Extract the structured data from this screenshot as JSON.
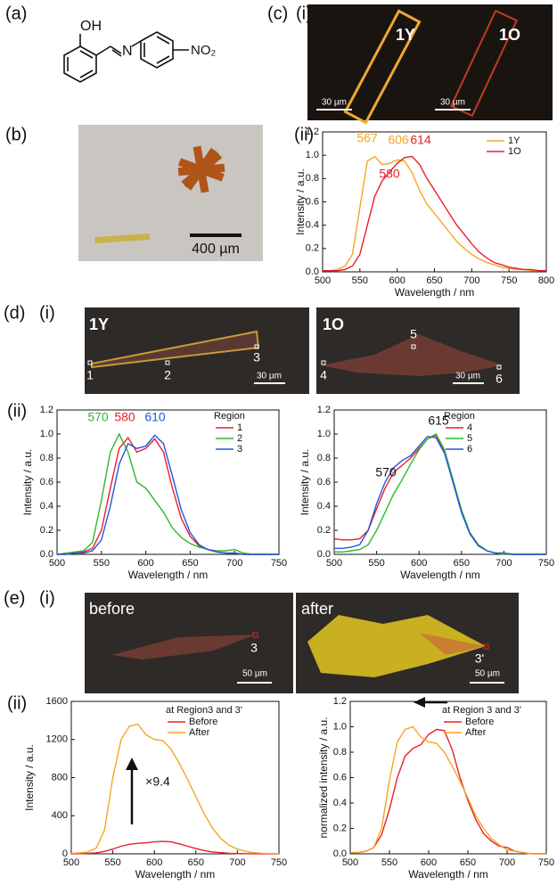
{
  "labels": {
    "a": "(a)",
    "b": "(b)",
    "c": "(c)",
    "c_i": "(i)",
    "c_ii": "(ii)",
    "d": "(d)",
    "d_i": "(i)",
    "d_ii": "(ii)",
    "e": "(e)",
    "e_i": "(i)",
    "e_ii": "(ii)"
  },
  "molecule": {
    "oh": "OH",
    "n": "N",
    "no2": "NO₂"
  },
  "photo_b": {
    "scale": "400 µm"
  },
  "image_c": {
    "left": "1Y",
    "right": "1O",
    "scale_left": "30 µm",
    "scale_right": "30 µm"
  },
  "image_d": {
    "left": "1Y",
    "right": "1O",
    "points": [
      "1",
      "2",
      "3",
      "4",
      "5",
      "6"
    ],
    "scale_left": "30 µm",
    "scale_right": "30 µm"
  },
  "image_e": {
    "left": "before",
    "right": "after",
    "point_left": "3",
    "point_right": "3'",
    "scale_left": "50 µm",
    "scale_right": "50 µm"
  },
  "chart_data": [
    {
      "type": "line",
      "x_label": "Wavelength / nm",
      "y_label": "Intensity / a.u.",
      "x": [
        500,
        510,
        520,
        530,
        540,
        550,
        560,
        570,
        580,
        590,
        600,
        610,
        620,
        630,
        640,
        650,
        660,
        670,
        680,
        690,
        700,
        710,
        720,
        730,
        740,
        750,
        760,
        770,
        780,
        790,
        800
      ],
      "series": [
        {
          "name": "1Y",
          "color": "#f5a623",
          "values": [
            0.01,
            0.01,
            0.02,
            0.05,
            0.15,
            0.55,
            0.95,
            0.99,
            0.92,
            0.93,
            0.96,
            0.95,
            0.85,
            0.7,
            0.58,
            0.5,
            0.42,
            0.34,
            0.26,
            0.2,
            0.15,
            0.11,
            0.08,
            0.06,
            0.04,
            0.03,
            0.02,
            0.02,
            0.01,
            0.01,
            0.01
          ]
        },
        {
          "name": "1O",
          "color": "#e8202a",
          "values": [
            0.01,
            0.01,
            0.01,
            0.02,
            0.05,
            0.15,
            0.4,
            0.65,
            0.78,
            0.86,
            0.93,
            0.98,
            0.99,
            0.92,
            0.8,
            0.7,
            0.6,
            0.5,
            0.4,
            0.32,
            0.24,
            0.17,
            0.12,
            0.08,
            0.06,
            0.04,
            0.03,
            0.02,
            0.02,
            0.01,
            0.01
          ]
        }
      ],
      "annotations": [
        {
          "text": "567",
          "color": "#f5a623"
        },
        {
          "text": "606",
          "color": "#f5a623"
        },
        {
          "text": "614",
          "color": "#e8202a"
        },
        {
          "text": "580",
          "color": "#e8202a"
        }
      ],
      "xlim": [
        500,
        800
      ],
      "xticks": [
        500,
        550,
        600,
        650,
        700,
        750,
        800
      ],
      "ylim": [
        0,
        1.2
      ],
      "yticks": [
        {
          "value": 0,
          "label": "0.0"
        },
        {
          "value": 0.2,
          "label": "0.2"
        },
        {
          "value": 0.4,
          "label": "0.4"
        },
        {
          "value": 0.6,
          "label": "0.6"
        },
        {
          "value": 0.8,
          "label": "0.8"
        },
        {
          "value": 1,
          "label": "1.0"
        },
        {
          "value": 1.2,
          "label": "1.2"
        }
      ]
    },
    {
      "type": "line",
      "x_label": "Wavelength / nm",
      "y_label": "Intensity / a.u.",
      "legend_title": "Region",
      "x": [
        500,
        510,
        520,
        530,
        540,
        550,
        560,
        570,
        580,
        590,
        600,
        610,
        620,
        630,
        640,
        650,
        660,
        670,
        680,
        690,
        700,
        710,
        720,
        730,
        740,
        750
      ],
      "series": [
        {
          "name": "1",
          "color": "#e8202a",
          "values": [
            0,
            0,
            0.01,
            0.02,
            0.05,
            0.2,
            0.55,
            0.88,
            0.97,
            0.85,
            0.88,
            0.96,
            0.85,
            0.55,
            0.3,
            0.15,
            0.07,
            0.04,
            0.02,
            0.01,
            0.01,
            0,
            0,
            0,
            0,
            0
          ]
        },
        {
          "name": "2",
          "color": "#2db82d",
          "values": [
            0,
            0.01,
            0.02,
            0.03,
            0.1,
            0.45,
            0.85,
            1.0,
            0.85,
            0.6,
            0.55,
            0.45,
            0.35,
            0.22,
            0.14,
            0.09,
            0.06,
            0.04,
            0.03,
            0.03,
            0.04,
            0.01,
            0,
            0,
            0,
            0
          ]
        },
        {
          "name": "3",
          "color": "#2255e0",
          "values": [
            0,
            0,
            0.01,
            0.01,
            0.03,
            0.12,
            0.4,
            0.75,
            0.92,
            0.88,
            0.9,
            0.99,
            0.92,
            0.65,
            0.37,
            0.18,
            0.08,
            0.04,
            0.02,
            0.01,
            0.01,
            0,
            0,
            0,
            0,
            0
          ]
        }
      ],
      "annotations": [
        {
          "text": "570",
          "color": "#2db82d"
        },
        {
          "text": "580",
          "color": "#e8202a"
        },
        {
          "text": "610",
          "color": "#2255e0"
        }
      ],
      "xlim": [
        500,
        750
      ],
      "xticks": [
        500,
        550,
        600,
        650,
        700,
        750
      ],
      "ylim": [
        0,
        1.2
      ],
      "yticks": [
        {
          "value": 0,
          "label": "0.0"
        },
        {
          "value": 0.2,
          "label": "0.2"
        },
        {
          "value": 0.4,
          "label": "0.4"
        },
        {
          "value": 0.6,
          "label": "0.6"
        },
        {
          "value": 0.8,
          "label": "0.8"
        },
        {
          "value": 1,
          "label": "1.0"
        },
        {
          "value": 1.2,
          "label": "1.2"
        }
      ]
    },
    {
      "type": "line",
      "x_label": "Wavelength / nm",
      "y_label": "Intensity / a.u.",
      "legend_title": "Region",
      "x": [
        500,
        510,
        520,
        530,
        540,
        550,
        560,
        570,
        580,
        590,
        600,
        610,
        620,
        630,
        640,
        650,
        660,
        670,
        680,
        690,
        700,
        710,
        720,
        730,
        740,
        750
      ],
      "series": [
        {
          "name": "4",
          "color": "#e8202a",
          "values": [
            0.13,
            0.12,
            0.12,
            0.13,
            0.2,
            0.38,
            0.55,
            0.68,
            0.74,
            0.8,
            0.88,
            0.96,
            0.99,
            0.85,
            0.6,
            0.35,
            0.17,
            0.07,
            0.03,
            0.01,
            0.01,
            0,
            0,
            0,
            0,
            0
          ]
        },
        {
          "name": "5",
          "color": "#2db82d",
          "values": [
            0.02,
            0.02,
            0.03,
            0.04,
            0.08,
            0.2,
            0.35,
            0.5,
            0.62,
            0.75,
            0.87,
            0.96,
            1.0,
            0.87,
            0.62,
            0.37,
            0.18,
            0.08,
            0.03,
            0.01,
            0,
            0,
            0,
            0,
            0,
            0
          ]
        },
        {
          "name": "6",
          "color": "#2255e0",
          "values": [
            0.05,
            0.05,
            0.06,
            0.08,
            0.2,
            0.42,
            0.6,
            0.72,
            0.78,
            0.82,
            0.9,
            0.98,
            0.97,
            0.84,
            0.6,
            0.35,
            0.17,
            0.07,
            0.03,
            0.01,
            0.01,
            0,
            0,
            0,
            0,
            0
          ]
        }
      ],
      "annotations": [
        {
          "text": "615",
          "color": "#111111"
        },
        {
          "text": "570",
          "color": "#111111"
        }
      ],
      "xlim": [
        500,
        750
      ],
      "xticks": [
        500,
        550,
        600,
        650,
        700,
        750
      ],
      "ylim": [
        0,
        1.2
      ],
      "yticks": [
        {
          "value": 0,
          "label": "0.0"
        },
        {
          "value": 0.2,
          "label": "0.2"
        },
        {
          "value": 0.4,
          "label": "0.4"
        },
        {
          "value": 0.6,
          "label": "0.6"
        },
        {
          "value": 0.8,
          "label": "0.8"
        },
        {
          "value": 1,
          "label": "1.0"
        },
        {
          "value": 1.2,
          "label": "1.2"
        }
      ]
    },
    {
      "type": "line",
      "x_label": "Wavelength / nm",
      "y_label": "Intensity / a.u.",
      "legend_title": "at Region3 and 3'",
      "x": [
        500,
        510,
        520,
        530,
        540,
        550,
        560,
        570,
        580,
        590,
        600,
        610,
        620,
        630,
        640,
        650,
        660,
        670,
        680,
        690,
        700,
        710,
        720,
        730,
        740,
        750
      ],
      "series": [
        {
          "name": "Before",
          "color": "#e8202a",
          "values": [
            0,
            2,
            5,
            10,
            25,
            50,
            80,
            100,
            110,
            115,
            125,
            130,
            125,
            105,
            80,
            55,
            35,
            20,
            12,
            6,
            3,
            2,
            1,
            0,
            0,
            0
          ]
        },
        {
          "name": "After",
          "color": "#f5a623",
          "values": [
            5,
            10,
            20,
            60,
            250,
            800,
            1200,
            1340,
            1360,
            1250,
            1200,
            1190,
            1100,
            950,
            780,
            600,
            420,
            270,
            160,
            90,
            50,
            25,
            12,
            6,
            3,
            2
          ]
        }
      ],
      "annotations": [
        {
          "text": "×9.4",
          "color": "#111111"
        }
      ],
      "xlim": [
        500,
        750
      ],
      "xticks": [
        500,
        550,
        600,
        650,
        700,
        750
      ],
      "ylim": [
        0,
        1600
      ],
      "yticks": [
        0,
        400,
        800,
        1200,
        1600
      ]
    },
    {
      "type": "line",
      "x_label": "Wavelength / nm",
      "y_label": "normalized intensity / a.u.",
      "legend_title": "at Region 3 and 3'",
      "x": [
        500,
        510,
        520,
        530,
        540,
        550,
        560,
        570,
        580,
        590,
        600,
        610,
        620,
        630,
        640,
        650,
        660,
        670,
        680,
        690,
        700,
        710,
        720,
        730,
        740,
        750
      ],
      "series": [
        {
          "name": "Before",
          "color": "#e8202a",
          "values": [
            0.01,
            0.01,
            0.02,
            0.05,
            0.15,
            0.35,
            0.6,
            0.77,
            0.83,
            0.86,
            0.94,
            0.98,
            0.97,
            0.82,
            0.6,
            0.42,
            0.27,
            0.16,
            0.1,
            0.06,
            0.05,
            0.02,
            0.01,
            0,
            0,
            0
          ]
        },
        {
          "name": "After",
          "color": "#f5a623",
          "values": [
            0.01,
            0.01,
            0.02,
            0.05,
            0.2,
            0.58,
            0.88,
            0.98,
            1.0,
            0.92,
            0.88,
            0.87,
            0.8,
            0.69,
            0.57,
            0.44,
            0.3,
            0.2,
            0.12,
            0.07,
            0.03,
            0.02,
            0.01,
            0,
            0,
            0
          ]
        }
      ],
      "annotations": [],
      "xlim": [
        500,
        750
      ],
      "xticks": [
        500,
        550,
        600,
        650,
        700,
        750
      ],
      "ylim": [
        0,
        1.2
      ],
      "yticks": [
        {
          "value": 0,
          "label": "0.0"
        },
        {
          "value": 0.2,
          "label": "0.2"
        },
        {
          "value": 0.4,
          "label": "0.4"
        },
        {
          "value": 0.6,
          "label": "0.6"
        },
        {
          "value": 0.8,
          "label": "0.8"
        },
        {
          "value": 1,
          "label": "1.0"
        },
        {
          "value": 1.2,
          "label": "1.2"
        }
      ]
    }
  ]
}
